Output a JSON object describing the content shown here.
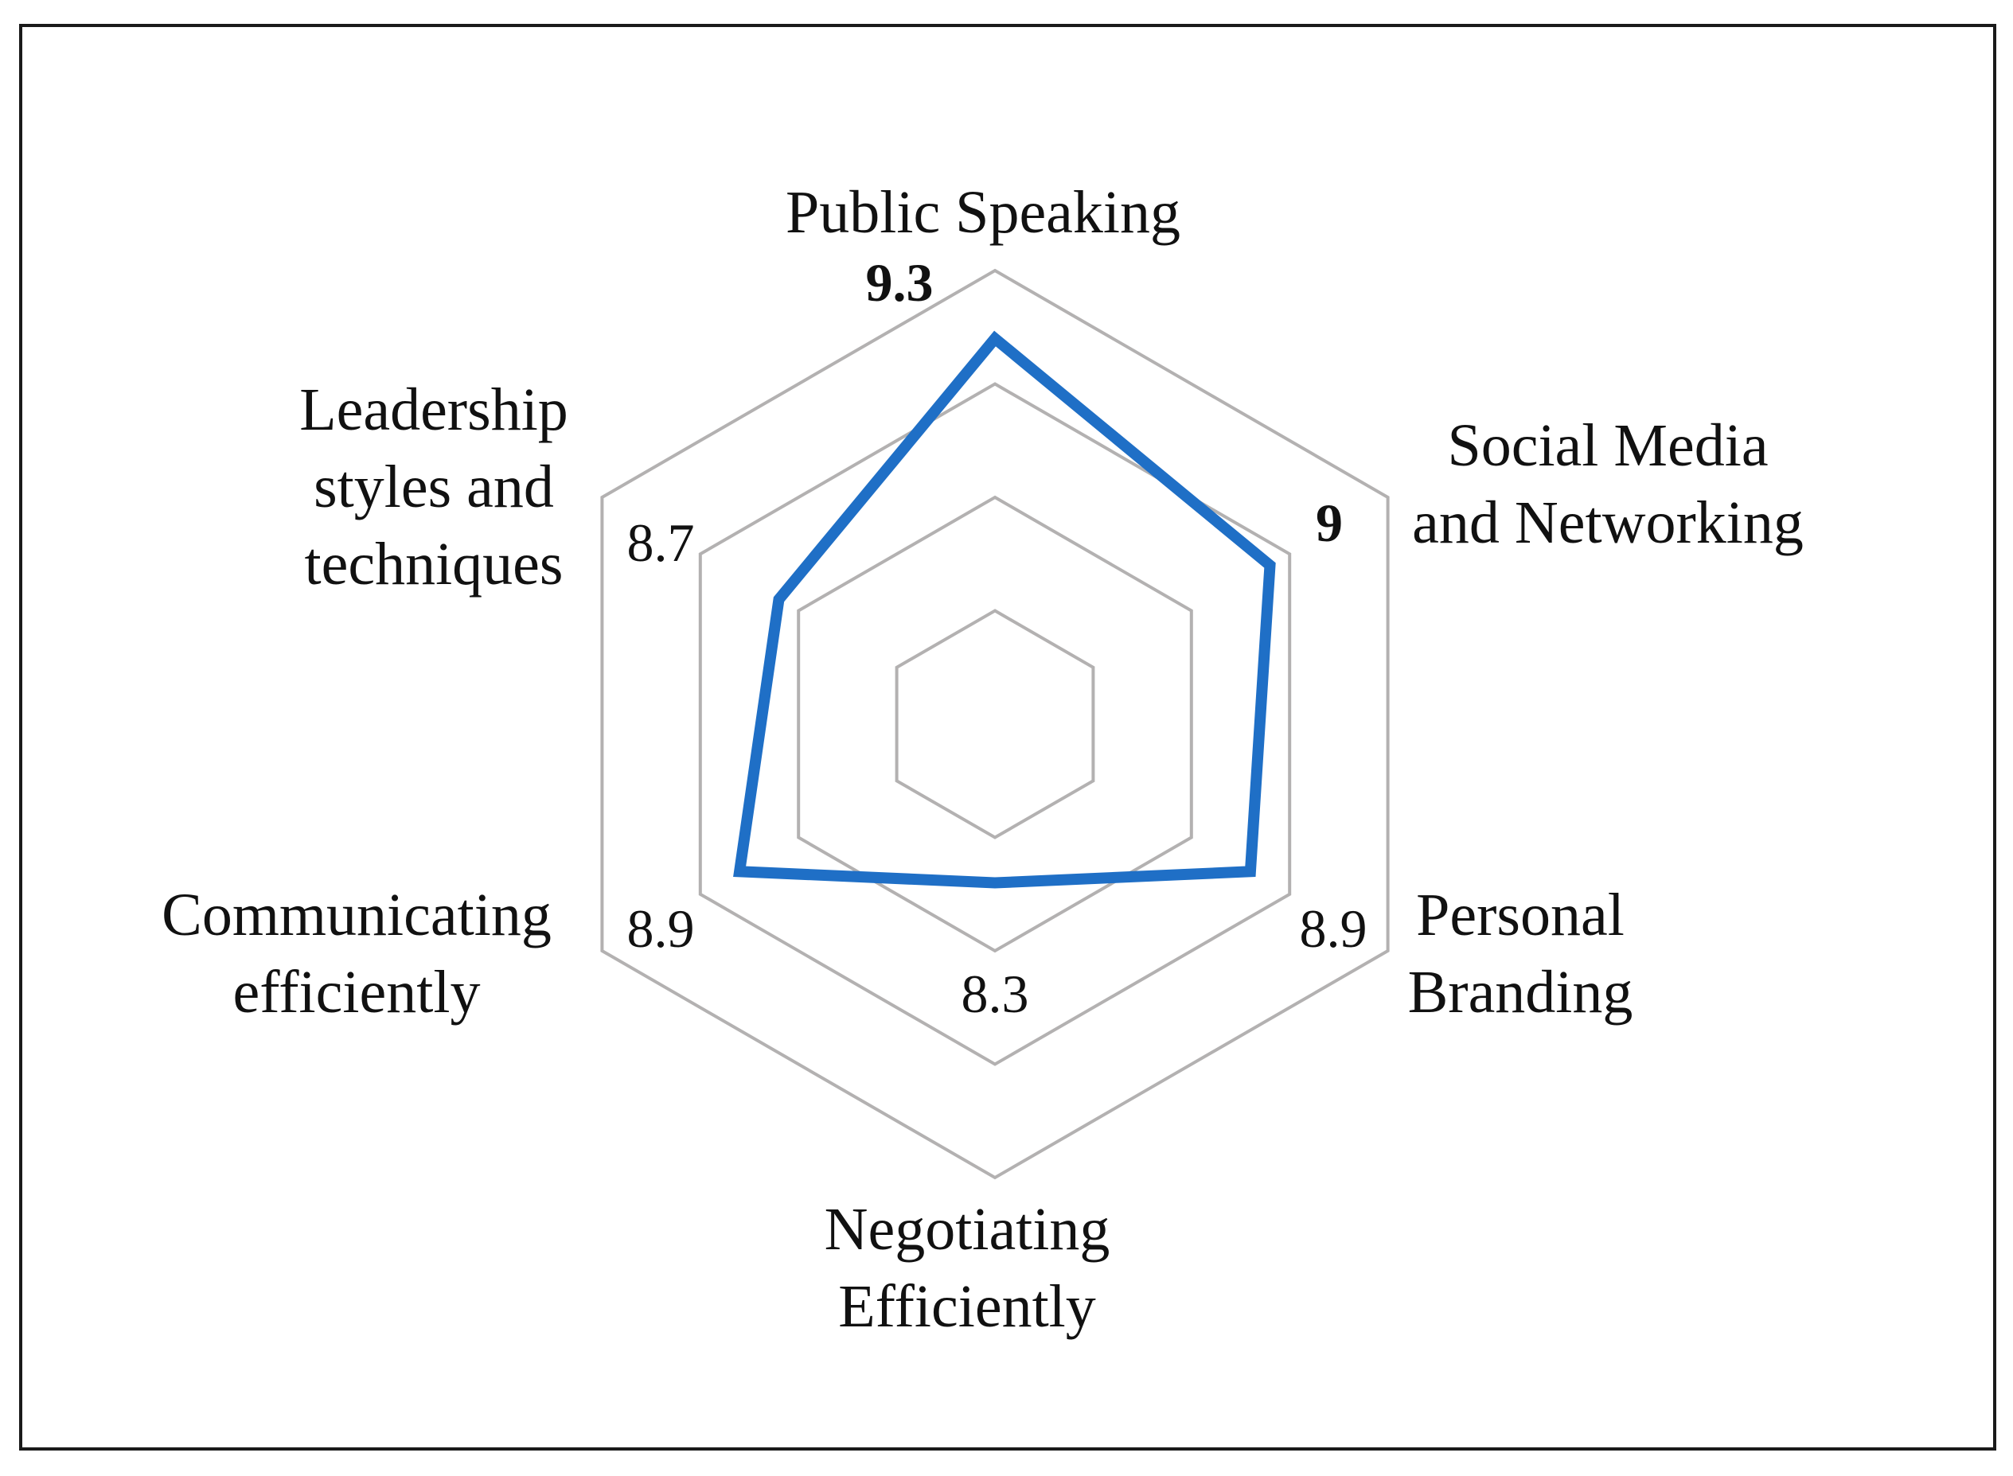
{
  "chart_data": {
    "type": "radar",
    "axes": [
      {
        "label_lines": [
          "Public Speaking"
        ],
        "value": 9.3,
        "value_label": "9.3",
        "bold": true
      },
      {
        "label_lines": [
          "Social Media",
          "and Networking"
        ],
        "value": 9.0,
        "value_label": "9",
        "bold": true
      },
      {
        "label_lines": [
          "Personal",
          "Branding"
        ],
        "value": 8.9,
        "value_label": "8.9",
        "bold": false
      },
      {
        "label_lines": [
          "Negotiating",
          "Efficiently"
        ],
        "value": 8.3,
        "value_label": "8.3",
        "bold": false
      },
      {
        "label_lines": [
          "Communicating",
          "efficiently"
        ],
        "value": 8.9,
        "value_label": "8.9",
        "bold": false
      },
      {
        "label_lines": [
          "Leadership",
          "styles and",
          "techniques"
        ],
        "value": 8.7,
        "value_label": "8.7",
        "bold": false
      }
    ],
    "range": [
      7.6,
      9.6
    ],
    "gridlines": [
      7.6,
      8.1,
      8.6,
      9.1,
      9.6
    ],
    "series_color": "#1f6fc6",
    "grid_color": "#b3b1b1"
  }
}
